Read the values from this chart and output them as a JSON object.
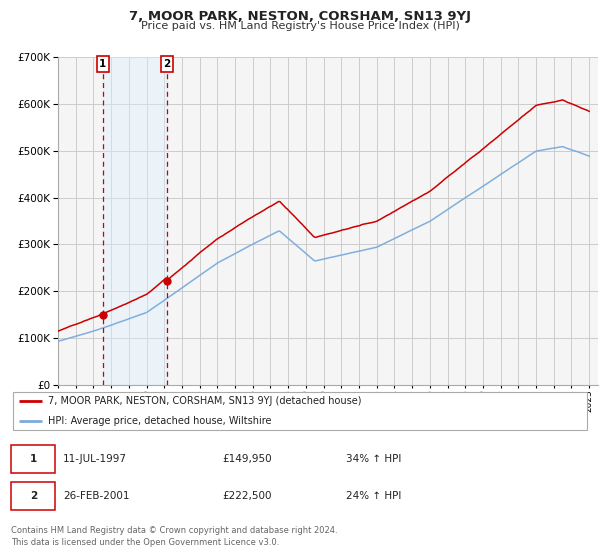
{
  "title": "7, MOOR PARK, NESTON, CORSHAM, SN13 9YJ",
  "subtitle": "Price paid vs. HM Land Registry's House Price Index (HPI)",
  "legend_label_red": "7, MOOR PARK, NESTON, CORSHAM, SN13 9YJ (detached house)",
  "legend_label_blue": "HPI: Average price, detached house, Wiltshire",
  "footnote1": "Contains HM Land Registry data © Crown copyright and database right 2024.",
  "footnote2": "This data is licensed under the Open Government Licence v3.0.",
  "transaction1_date": "11-JUL-1997",
  "transaction1_price": "£149,950",
  "transaction1_hpi": "34% ↑ HPI",
  "transaction2_date": "26-FEB-2001",
  "transaction2_price": "£222,500",
  "transaction2_hpi": "24% ↑ HPI",
  "marker1_x": 1997.53,
  "marker1_y": 149950,
  "marker2_x": 2001.15,
  "marker2_y": 222500,
  "vline1_x": 1997.53,
  "vline2_x": 2001.15,
  "shade_x1": 1997.53,
  "shade_x2": 2001.15,
  "ylim_min": 0,
  "ylim_max": 700000,
  "xlim_min": 1995.0,
  "xlim_max": 2025.5,
  "red_color": "#cc0000",
  "blue_color": "#7aabdc",
  "shade_color": "#ddeeff",
  "background_color": "#f5f5f5",
  "grid_color": "#cccccc",
  "vline_color": "#cc0000",
  "yticks": [
    0,
    100000,
    200000,
    300000,
    400000,
    500000,
    600000,
    700000
  ],
  "xticks": [
    1995,
    1996,
    1997,
    1998,
    1999,
    2000,
    2001,
    2002,
    2003,
    2004,
    2005,
    2006,
    2007,
    2008,
    2009,
    2010,
    2011,
    2012,
    2013,
    2014,
    2015,
    2016,
    2017,
    2018,
    2019,
    2020,
    2021,
    2022,
    2023,
    2024,
    2025
  ]
}
